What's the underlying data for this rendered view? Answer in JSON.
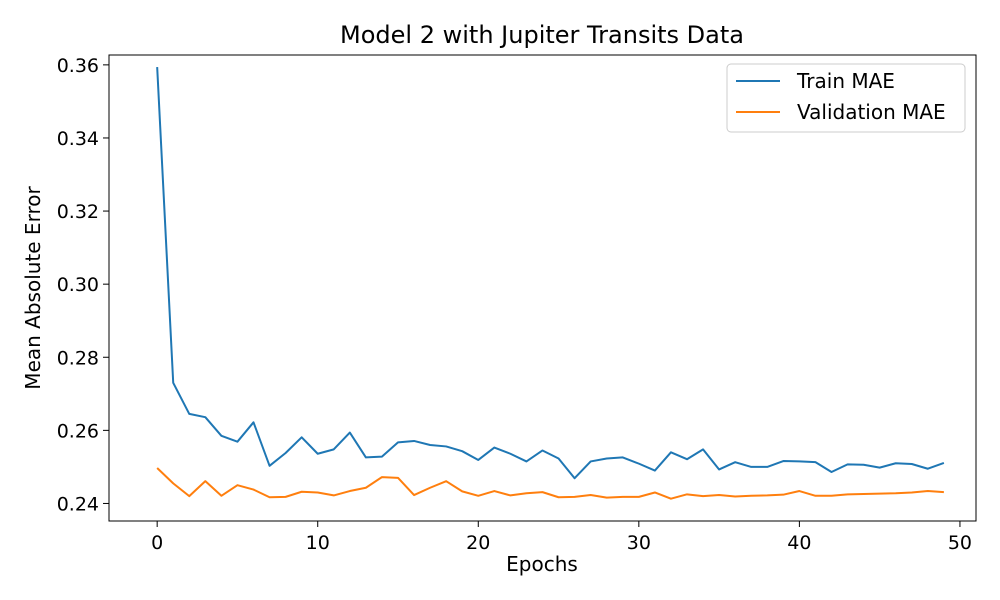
{
  "colors": {
    "train": "#1f77b4",
    "validation": "#ff7f0e",
    "axis": "#000000",
    "background": "#ffffff"
  },
  "chart_data": {
    "type": "line",
    "title": "Model 2 with Jupiter Transits Data",
    "xlabel": "Epochs",
    "ylabel": "Mean Absolute Error",
    "xlim": [
      -3,
      51
    ],
    "ylim": [
      0.2352,
      0.3627
    ],
    "xticks": [
      0,
      10,
      20,
      30,
      40,
      50
    ],
    "xtick_labels": [
      "0",
      "10",
      "20",
      "30",
      "40",
      "50"
    ],
    "yticks": [
      0.24,
      0.26,
      0.28,
      0.3,
      0.32,
      0.34,
      0.36
    ],
    "ytick_labels": [
      "0.24",
      "0.26",
      "0.28",
      "0.30",
      "0.32",
      "0.34",
      "0.36"
    ],
    "grid": false,
    "legend_position": "top-right",
    "x": [
      0,
      1,
      2,
      3,
      4,
      5,
      6,
      7,
      8,
      9,
      10,
      11,
      12,
      13,
      14,
      15,
      16,
      17,
      18,
      19,
      20,
      21,
      22,
      23,
      24,
      25,
      26,
      27,
      28,
      29,
      30,
      31,
      32,
      33,
      34,
      35,
      36,
      37,
      38,
      39,
      40,
      41,
      42,
      43,
      44,
      45,
      46,
      47,
      48,
      49
    ],
    "series": [
      {
        "name": "Train MAE",
        "color": "#1f77b4",
        "values": [
          0.3594,
          0.273,
          0.2645,
          0.2636,
          0.2585,
          0.2569,
          0.2622,
          0.2503,
          0.2538,
          0.2581,
          0.2536,
          0.2548,
          0.2594,
          0.2526,
          0.2528,
          0.2567,
          0.2571,
          0.256,
          0.2556,
          0.2543,
          0.2519,
          0.2553,
          0.2536,
          0.2515,
          0.2545,
          0.2523,
          0.2469,
          0.2515,
          0.2523,
          0.2526,
          0.2509,
          0.249,
          0.254,
          0.2521,
          0.2548,
          0.2493,
          0.2513,
          0.25,
          0.25,
          0.2516,
          0.2515,
          0.2513,
          0.2486,
          0.2507,
          0.2506,
          0.2498,
          0.251,
          0.2508,
          0.2495,
          0.2511
        ]
      },
      {
        "name": "Validation MAE",
        "color": "#ff7f0e",
        "values": [
          0.2497,
          0.2455,
          0.242,
          0.2461,
          0.2421,
          0.245,
          0.2438,
          0.2417,
          0.2418,
          0.2432,
          0.243,
          0.2422,
          0.2434,
          0.2443,
          0.2472,
          0.247,
          0.2423,
          0.2443,
          0.2461,
          0.2433,
          0.2421,
          0.2434,
          0.2422,
          0.2428,
          0.2431,
          0.2417,
          0.2418,
          0.2423,
          0.2416,
          0.2418,
          0.2418,
          0.243,
          0.2413,
          0.2425,
          0.242,
          0.2423,
          0.2419,
          0.2421,
          0.2422,
          0.2424,
          0.2434,
          0.2421,
          0.2421,
          0.2425,
          0.2426,
          0.2427,
          0.2428,
          0.243,
          0.2434,
          0.2431
        ]
      }
    ]
  }
}
